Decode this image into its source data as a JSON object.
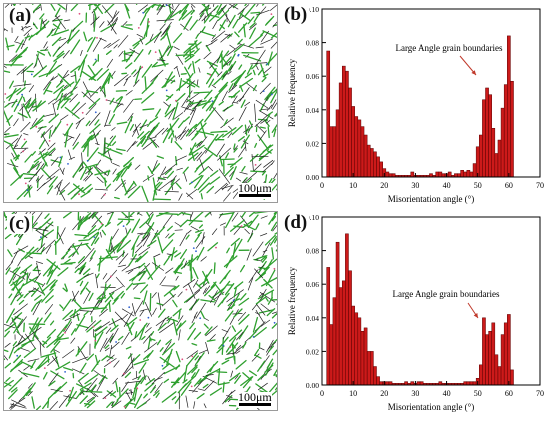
{
  "figure": {
    "panels": [
      {
        "id": "a",
        "label": "(a)",
        "kind": "micrograph",
        "scale_label": "100μm"
      },
      {
        "id": "b",
        "label": "(b)",
        "kind": "histogram"
      },
      {
        "id": "c",
        "label": "(c)",
        "kind": "micrograph",
        "scale_label": "100μm"
      },
      {
        "id": "d",
        "label": "(d)",
        "kind": "histogram"
      }
    ],
    "colors": {
      "bar_fill": "#cc1a1a",
      "bar_edge": "#5a0000",
      "boundary_green": "#2fa02f",
      "boundary_black": "#202020",
      "arrow": "#c0392b"
    }
  },
  "chart_data": [
    {
      "panel": "b",
      "type": "bar",
      "xlabel": "Misorientation angle (°)",
      "ylabel": "Relative frequency",
      "xlim": [
        0,
        70
      ],
      "ylim": [
        0,
        0.1
      ],
      "xticks": [
        0,
        10,
        20,
        30,
        40,
        50,
        60,
        70
      ],
      "yticks": [
        0.0,
        0.02,
        0.04,
        0.06,
        0.08,
        0.1
      ],
      "ytick_labels": [
        "0.00",
        "0.02",
        "0.04",
        "0.06",
        "0.08",
        "0.10"
      ],
      "annotation": "Large Angle grain boundaries",
      "bin_width": 1,
      "x": [
        2,
        3,
        4,
        5,
        6,
        7,
        8,
        9,
        10,
        11,
        12,
        13,
        14,
        15,
        16,
        17,
        18,
        19,
        20,
        21,
        22,
        23,
        24,
        25,
        26,
        27,
        28,
        29,
        30,
        31,
        32,
        33,
        34,
        35,
        36,
        37,
        38,
        39,
        40,
        41,
        42,
        43,
        44,
        45,
        46,
        47,
        48,
        49,
        50,
        51,
        52,
        53,
        54,
        55,
        56,
        57,
        58,
        59,
        60,
        61
      ],
      "values": [
        0.075,
        0.03,
        0.03,
        0.04,
        0.056,
        0.066,
        0.063,
        0.053,
        0.042,
        0.036,
        0.034,
        0.03,
        0.025,
        0.019,
        0.017,
        0.015,
        0.012,
        0.009,
        0.005,
        0.003,
        0.002,
        0.002,
        0.001,
        0.001,
        0.001,
        0.001,
        0.001,
        0.003,
        0.001,
        0.001,
        0.001,
        0.001,
        0.001,
        0.002,
        0.001,
        0.003,
        0.003,
        0.002,
        0.002,
        0.003,
        0.001,
        0.002,
        0.002,
        0.004,
        0.003,
        0.004,
        0.003,
        0.008,
        0.018,
        0.025,
        0.046,
        0.053,
        0.049,
        0.029,
        0.014,
        0.022,
        0.041,
        0.055,
        0.084,
        0.057
      ]
    },
    {
      "panel": "d",
      "type": "bar",
      "xlabel": "Misorientation angle (°)",
      "ylabel": "Relative frequency",
      "xlim": [
        0,
        70
      ],
      "ylim": [
        0,
        0.1
      ],
      "xticks": [
        0,
        10,
        20,
        30,
        40,
        50,
        60,
        70
      ],
      "yticks": [
        0.0,
        0.02,
        0.04,
        0.06,
        0.08,
        0.1
      ],
      "ytick_labels": [
        "0.00",
        "0.02",
        "0.04",
        "0.06",
        "0.08",
        "0.10"
      ],
      "annotation": "Large Angle grain boundaries",
      "bin_width": 1,
      "x": [
        2,
        3,
        4,
        5,
        6,
        7,
        8,
        9,
        10,
        11,
        12,
        13,
        14,
        15,
        16,
        17,
        18,
        19,
        20,
        21,
        22,
        23,
        24,
        25,
        26,
        27,
        28,
        29,
        30,
        31,
        32,
        33,
        34,
        35,
        36,
        37,
        38,
        39,
        40,
        41,
        42,
        43,
        44,
        45,
        46,
        47,
        48,
        49,
        50,
        51,
        52,
        53,
        54,
        55,
        56,
        57,
        58,
        59,
        60,
        61
      ],
      "values": [
        0.07,
        0.036,
        0.052,
        0.085,
        0.058,
        0.062,
        0.09,
        0.068,
        0.047,
        0.043,
        0.04,
        0.032,
        0.034,
        0.02,
        0.02,
        0.011,
        0.005,
        0.002,
        0.002,
        0.002,
        0.002,
        0.001,
        0.001,
        0.001,
        0.001,
        0.002,
        0.001,
        0.002,
        0.001,
        0.002,
        0.002,
        0.001,
        0.001,
        0.001,
        0.001,
        0.001,
        0.002,
        0.001,
        0.001,
        0.001,
        0.001,
        0.001,
        0.001,
        0.001,
        0.002,
        0.002,
        0.002,
        0.002,
        0.004,
        0.012,
        0.04,
        0.03,
        0.032,
        0.037,
        0.018,
        0.011,
        0.03,
        0.037,
        0.042,
        0.009
      ]
    }
  ]
}
